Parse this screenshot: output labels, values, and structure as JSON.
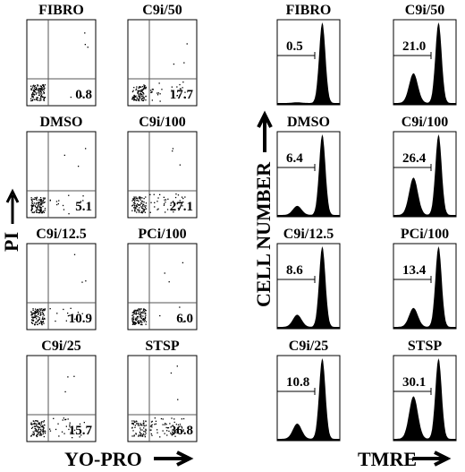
{
  "dot_plots": [
    {
      "label": "FIBRO",
      "value": "0.8"
    },
    {
      "label": "C9i/50",
      "value": "17.7"
    },
    {
      "label": "DMSO",
      "value": "5.1"
    },
    {
      "label": "C9i/100",
      "value": "27.1"
    },
    {
      "label": "C9i/12.5",
      "value": "10.9"
    },
    {
      "label": "PCi/100",
      "value": "6.0"
    },
    {
      "label": "C9i/25",
      "value": "15.7"
    },
    {
      "label": "STSP",
      "value": "36.8"
    }
  ],
  "histograms": [
    {
      "label": "FIBRO",
      "value": "0.5"
    },
    {
      "label": "C9i/50",
      "value": "21.0"
    },
    {
      "label": "DMSO",
      "value": "6.4"
    },
    {
      "label": "C9i/100",
      "value": "26.4"
    },
    {
      "label": "C9i/12.5",
      "value": "8.6"
    },
    {
      "label": "PCi/100",
      "value": "13.4"
    },
    {
      "label": "C9i/25",
      "value": "10.8"
    },
    {
      "label": "STSP",
      "value": "30.1"
    }
  ],
  "axes": {
    "dot_y": "PI",
    "dot_x": "YO-PRO",
    "hist_y": "CELL NUMBER",
    "hist_x": "TMRE"
  }
}
